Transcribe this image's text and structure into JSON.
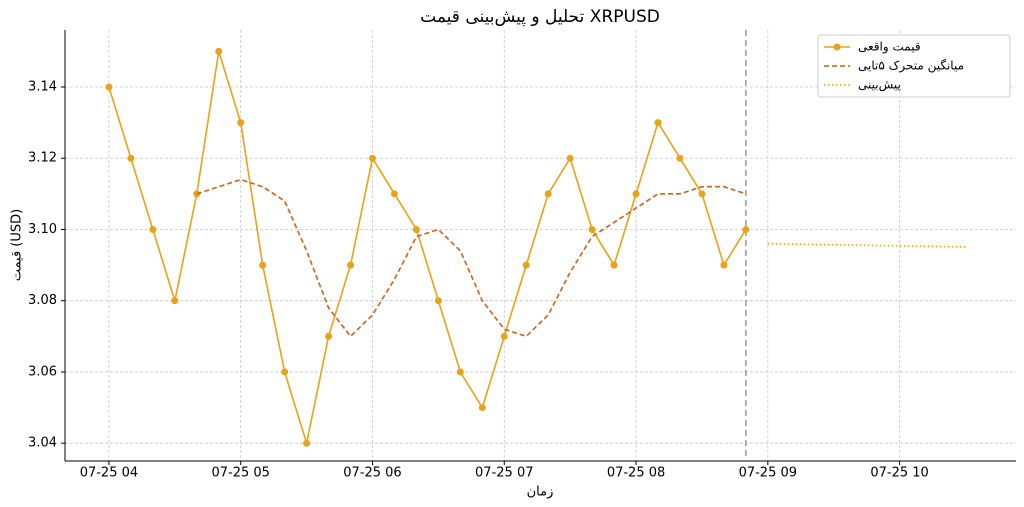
{
  "chart_data": {
    "type": "line",
    "title": "تحلیل و پیش‌بینی قیمت XRPUSD",
    "x_label": "زمان",
    "y_label": "قیمت (USD)",
    "xlim": [
      220,
      653
    ],
    "xticks": [
      {
        "value": 240,
        "label": "07-25 04"
      },
      {
        "value": 300,
        "label": "07-25 05"
      },
      {
        "value": 360,
        "label": "07-25 06"
      },
      {
        "value": 420,
        "label": "07-25 07"
      },
      {
        "value": 480,
        "label": "07-25 08"
      },
      {
        "value": 540,
        "label": "07-25 09"
      },
      {
        "value": 600,
        "label": "07-25 10"
      }
    ],
    "ylim": [
      3.035,
      3.156
    ],
    "yticks": [
      {
        "value": 3.04,
        "label": "3.04"
      },
      {
        "value": 3.06,
        "label": "3.06"
      },
      {
        "value": 3.08,
        "label": "3.08"
      },
      {
        "value": 3.1,
        "label": "3.10"
      },
      {
        "value": 3.12,
        "label": "3.12"
      },
      {
        "value": 3.14,
        "label": "3.14"
      }
    ],
    "grid": true,
    "divider_x": 530,
    "legend": "upper right",
    "series": [
      {
        "name": "قیمت واقعی",
        "color": "#e8a317",
        "style": "solid",
        "marker": true,
        "x": [
          240,
          250,
          260,
          270,
          280,
          290,
          300,
          310,
          320,
          330,
          340,
          350,
          360,
          370,
          380,
          390,
          400,
          410,
          420,
          430,
          440,
          450,
          460,
          470,
          480,
          490,
          500,
          510,
          520,
          530
        ],
        "values": [
          3.14,
          3.12,
          3.1,
          3.08,
          3.11,
          3.15,
          3.13,
          3.09,
          3.06,
          3.04,
          3.07,
          3.09,
          3.12,
          3.11,
          3.1,
          3.08,
          3.06,
          3.05,
          3.07,
          3.09,
          3.11,
          3.12,
          3.1,
          3.09,
          3.11,
          3.13,
          3.12,
          3.11,
          3.09,
          3.1
        ]
      },
      {
        "name": "میانگین متحرک ۵تایی",
        "color": "#d2601a",
        "style": "dashed",
        "marker": false,
        "x": [
          240,
          250,
          260,
          270,
          280,
          290,
          300,
          310,
          320,
          330,
          340,
          350,
          360,
          370,
          380,
          390,
          400,
          410,
          420,
          430,
          440,
          450,
          460,
          470,
          480,
          490,
          500,
          510,
          520,
          530
        ],
        "values": [
          null,
          null,
          null,
          null,
          3.11,
          3.112,
          3.114,
          3.112,
          3.108,
          3.094,
          3.078,
          3.07,
          3.076,
          3.086,
          3.098,
          3.1,
          3.094,
          3.08,
          3.072,
          3.07,
          3.076,
          3.088,
          3.098,
          3.102,
          3.106,
          3.11,
          3.11,
          3.112,
          3.112,
          3.11
        ]
      },
      {
        "name": "پیش‌بینی",
        "color": "#f0a000",
        "style": "dotted",
        "marker": false,
        "x": [
          540,
          550,
          560,
          570,
          580,
          590,
          600,
          610,
          620,
          630
        ],
        "values": [
          3.096,
          3.0959,
          3.0958,
          3.0957,
          3.0956,
          3.0955,
          3.0954,
          3.0953,
          3.0952,
          3.0951
        ]
      }
    ]
  }
}
